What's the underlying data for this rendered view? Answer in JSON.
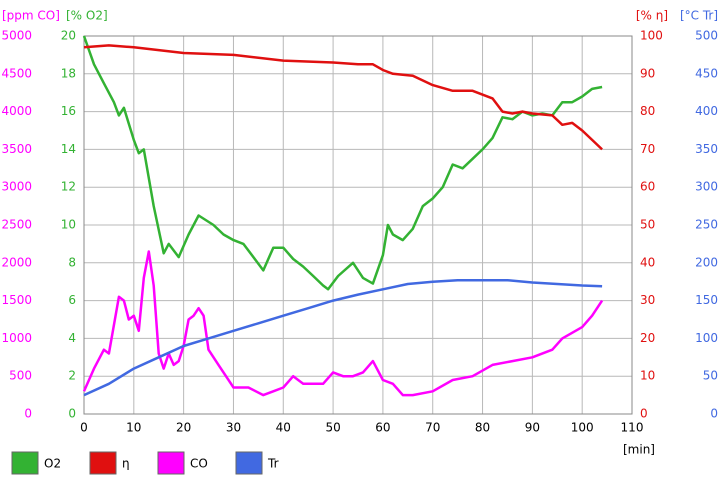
{
  "chart_data": {
    "type": "line",
    "xlabel": "[min]",
    "xlim": [
      0,
      110
    ],
    "xticks": [
      0,
      10,
      20,
      30,
      40,
      50,
      60,
      70,
      80,
      90,
      100,
      110
    ],
    "axes": {
      "y": {
        "label": "[ppm CO]",
        "color": "#ff00ff",
        "lim": [
          0,
          5000
        ],
        "ticks": [
          0,
          500,
          1000,
          1500,
          2000,
          2500,
          3000,
          3500,
          4000,
          4500,
          5000
        ]
      },
      "y2": {
        "label": "[% O2]",
        "color": "#33b233",
        "lim": [
          0,
          20
        ],
        "ticks": [
          0,
          2,
          4,
          6,
          8,
          10,
          12,
          14,
          16,
          18,
          20
        ]
      },
      "y3": {
        "label": "[% η]",
        "color": "#e01010",
        "lim": [
          0,
          100
        ],
        "ticks": [
          0,
          10,
          20,
          30,
          40,
          50,
          60,
          70,
          80,
          90,
          100
        ]
      },
      "y4": {
        "label": "[°C Tr]",
        "color": "#4169e1",
        "lim": [
          0,
          500
        ],
        "ticks": [
          0,
          50,
          100,
          150,
          200,
          250,
          300,
          350,
          400,
          450,
          500
        ]
      }
    },
    "grid": true,
    "series": [
      {
        "name": "O2",
        "color": "#33b233",
        "axis": "y2",
        "x": [
          0,
          2,
          4,
          6,
          7,
          8,
          10,
          11,
          12,
          14,
          16,
          17,
          19,
          21,
          23,
          26,
          28,
          30,
          32,
          34,
          36,
          38,
          40,
          42,
          44,
          46,
          48,
          49,
          51,
          54,
          56,
          58,
          60,
          61,
          62,
          64,
          66,
          68,
          70,
          72,
          74,
          76,
          78,
          80,
          82,
          84,
          86,
          88,
          90,
          92,
          94,
          96,
          98,
          100,
          102,
          104
        ],
        "values": [
          20,
          18.5,
          17.5,
          16.5,
          15.8,
          16.2,
          14.5,
          13.8,
          14.0,
          11,
          8.5,
          9,
          8.3,
          9.5,
          10.5,
          10,
          9.5,
          9.2,
          9.0,
          8.3,
          7.6,
          8.8,
          8.8,
          8.2,
          7.8,
          7.3,
          6.8,
          6.6,
          7.3,
          8.0,
          7.2,
          6.9,
          8.4,
          10,
          9.5,
          9.2,
          9.8,
          11,
          11.4,
          12.0,
          13.2,
          13.0,
          13.5,
          14.0,
          14.6,
          15.7,
          15.6,
          16.0,
          15.8,
          15.9,
          15.8,
          16.5,
          16.5,
          16.8,
          17.2,
          17.3
        ]
      },
      {
        "name": "η",
        "color": "#e01010",
        "axis": "y3",
        "x": [
          0,
          5,
          10,
          20,
          30,
          40,
          50,
          55,
          58,
          60,
          62,
          66,
          70,
          74,
          78,
          82,
          84,
          86,
          88,
          90,
          94,
          96,
          98,
          100,
          102,
          104
        ],
        "values": [
          97,
          97.5,
          97,
          95.5,
          95,
          93.5,
          93,
          92.5,
          92.5,
          91,
          90,
          89.5,
          87,
          85.5,
          85.5,
          83.5,
          80,
          79.5,
          80,
          79.5,
          79,
          76.5,
          77,
          75,
          72.5,
          70
        ]
      },
      {
        "name": "CO",
        "color": "#ff00ff",
        "axis": "y",
        "x": [
          0,
          2,
          4,
          5,
          7,
          8,
          9,
          10,
          11,
          12,
          13,
          14,
          15,
          16,
          17,
          18,
          19,
          20,
          21,
          22,
          23,
          24,
          25,
          27,
          30,
          33,
          36,
          38,
          40,
          42,
          44,
          46,
          48,
          50,
          52,
          54,
          56,
          58,
          60,
          62,
          64,
          66,
          70,
          74,
          78,
          82,
          86,
          90,
          94,
          96,
          100,
          102,
          104
        ],
        "values": [
          300,
          600,
          850,
          800,
          1550,
          1500,
          1250,
          1300,
          1100,
          1800,
          2150,
          1700,
          800,
          600,
          800,
          650,
          700,
          900,
          1250,
          1300,
          1400,
          1300,
          850,
          650,
          350,
          350,
          250,
          300,
          350,
          500,
          400,
          400,
          400,
          550,
          500,
          500,
          550,
          700,
          450,
          400,
          250,
          250,
          300,
          450,
          500,
          650,
          700,
          750,
          850,
          1000,
          1150,
          1300,
          1500
        ]
      },
      {
        "name": "Tr",
        "color": "#4169e1",
        "axis": "y4",
        "x": [
          0,
          5,
          10,
          15,
          20,
          25,
          30,
          35,
          40,
          45,
          50,
          55,
          60,
          65,
          70,
          75,
          80,
          85,
          90,
          95,
          100,
          104
        ],
        "values": [
          25,
          40,
          60,
          75,
          90,
          100,
          110,
          120,
          130,
          140,
          150,
          158,
          165,
          172,
          175,
          177,
          177,
          177,
          174,
          172,
          170,
          169
        ]
      }
    ]
  }
}
